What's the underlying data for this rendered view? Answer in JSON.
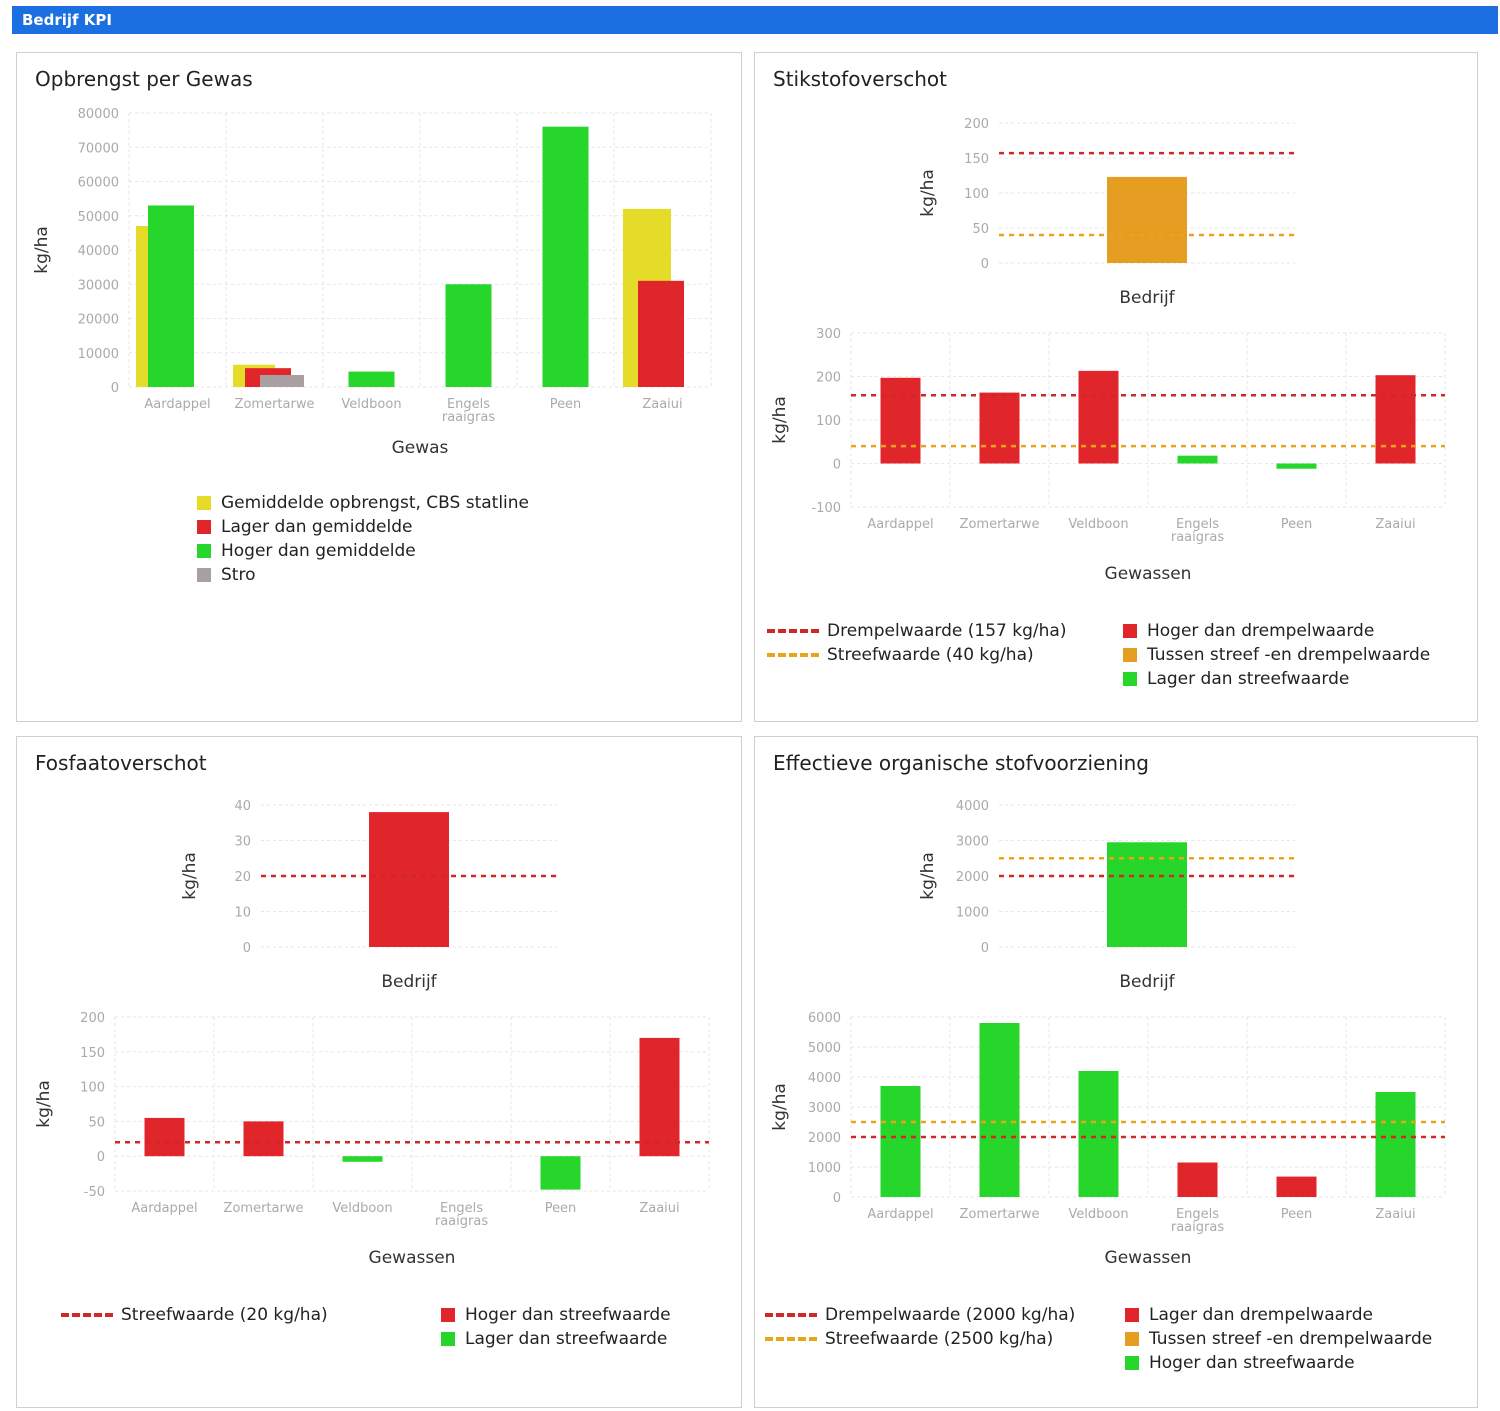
{
  "header": {
    "title": "Bedrijf KPI"
  },
  "colors": {
    "red": "#e0262a",
    "green": "#27d62a",
    "yellow": "#e5dc2a",
    "orange": "#e69e22",
    "gray": "#a9a0a3",
    "threshold": "#d0282a",
    "target": "#e8a51c"
  },
  "panels": {
    "p1": {
      "title": "Opbrengst per Gewas"
    },
    "p2": {
      "title": "Stikstofoverschot"
    },
    "p3": {
      "title": "Fosfaatoverschot"
    },
    "p4": {
      "title": "Effectieve organische stofvoorziening"
    }
  },
  "chart_data": [
    {
      "id": "opbrengst",
      "type": "bar",
      "xlabel": "Gewas",
      "ylabel": "kg/ha",
      "ylim": [
        0,
        80000
      ],
      "yticks": [
        "0",
        "10000",
        "20000",
        "30000",
        "40000",
        "50000",
        "60000",
        "70000",
        "80000"
      ],
      "categories": [
        [
          "Aardappel"
        ],
        [
          "Zomertarwe"
        ],
        [
          "Veldboon"
        ],
        [
          "Engels",
          "raaigras"
        ],
        [
          "Peen"
        ],
        [
          "Zaaiui"
        ]
      ],
      "series": [
        {
          "name": "Gemiddelde opbrengst, CBS statline",
          "color": "yellow",
          "values": [
            47000,
            6500,
            null,
            null,
            null,
            52000
          ]
        },
        {
          "name": "Lager dan gemiddelde",
          "color": "red",
          "values": [
            null,
            5500,
            null,
            null,
            null,
            31000
          ]
        },
        {
          "name": "Hoger dan gemiddelde",
          "color": "green",
          "values": [
            53000,
            null,
            4500,
            30000,
            76000,
            null
          ]
        },
        {
          "name": "Stro",
          "color": "gray",
          "values": [
            null,
            3500,
            null,
            null,
            null,
            null
          ]
        }
      ],
      "grid": true
    },
    {
      "id": "stikstof_bedrijf",
      "type": "bar",
      "xlabel": "Bedrijf",
      "ylabel": "kg/ha",
      "ylim": [
        0,
        200
      ],
      "yticks": [
        "0",
        "50",
        "100",
        "150",
        "200"
      ],
      "values": [
        {
          "value": 123,
          "color": "orange"
        }
      ],
      "thresholds": [
        {
          "value": 157,
          "color": "threshold"
        },
        {
          "value": 40,
          "color": "target"
        }
      ]
    },
    {
      "id": "stikstof_gewassen",
      "type": "bar",
      "xlabel": "Gewassen",
      "ylabel": "kg/ha",
      "ylim": [
        -100,
        300
      ],
      "yticks": [
        "-100",
        "0",
        "100",
        "200",
        "300"
      ],
      "categories": [
        [
          "Aardappel"
        ],
        [
          "Zomertarwe"
        ],
        [
          "Veldboon"
        ],
        [
          "Engels",
          "raaigras"
        ],
        [
          "Peen"
        ],
        [
          "Zaaiui"
        ]
      ],
      "values": [
        {
          "value": 197,
          "color": "red"
        },
        {
          "value": 163,
          "color": "red"
        },
        {
          "value": 213,
          "color": "red"
        },
        {
          "value": 18,
          "color": "green"
        },
        {
          "value": -12,
          "color": "green"
        },
        {
          "value": 203,
          "color": "red"
        }
      ],
      "thresholds": [
        {
          "value": 157,
          "color": "threshold"
        },
        {
          "value": 40,
          "color": "target"
        }
      ],
      "legend": {
        "lines": [
          {
            "label": "Drempelwaarde (157 kg/ha)",
            "color": "threshold"
          },
          {
            "label": "Streefwaarde (40 kg/ha)",
            "color": "target"
          }
        ],
        "boxes": [
          {
            "label": "Hoger dan drempelwaarde",
            "color": "red"
          },
          {
            "label": "Tussen streef -en drempelwaarde",
            "color": "orange"
          },
          {
            "label": "Lager dan streefwaarde",
            "color": "green"
          }
        ]
      }
    },
    {
      "id": "fosfaat_bedrijf",
      "type": "bar",
      "xlabel": "Bedrijf",
      "ylabel": "kg/ha",
      "ylim": [
        0,
        40
      ],
      "yticks": [
        "0",
        "10",
        "20",
        "30",
        "40"
      ],
      "values": [
        {
          "value": 38,
          "color": "red"
        }
      ],
      "thresholds": [
        {
          "value": 20,
          "color": "threshold"
        }
      ]
    },
    {
      "id": "fosfaat_gewassen",
      "type": "bar",
      "xlabel": "Gewassen",
      "ylabel": "kg/ha",
      "ylim": [
        -50,
        200
      ],
      "yticks": [
        "-50",
        "0",
        "50",
        "100",
        "150",
        "200"
      ],
      "categories": [
        [
          "Aardappel"
        ],
        [
          "Zomertarwe"
        ],
        [
          "Veldboon"
        ],
        [
          "Engels",
          "raaigras"
        ],
        [
          "Peen"
        ],
        [
          "Zaaiui"
        ]
      ],
      "values": [
        {
          "value": 55,
          "color": "red"
        },
        {
          "value": 50,
          "color": "red"
        },
        {
          "value": -8,
          "color": "green"
        },
        {
          "value": null,
          "color": "green"
        },
        {
          "value": -48,
          "color": "green"
        },
        {
          "value": 170,
          "color": "red"
        }
      ],
      "thresholds": [
        {
          "value": 20,
          "color": "threshold"
        }
      ],
      "legend": {
        "lines": [
          {
            "label": "Streefwaarde (20 kg/ha)",
            "color": "threshold"
          }
        ],
        "boxes": [
          {
            "label": "Hoger dan streefwaarde",
            "color": "red"
          },
          {
            "label": "Lager dan streefwaarde",
            "color": "green"
          }
        ]
      }
    },
    {
      "id": "eos_bedrijf",
      "type": "bar",
      "xlabel": "Bedrijf",
      "ylabel": "kg/ha",
      "ylim": [
        0,
        4000
      ],
      "yticks": [
        "0",
        "1000",
        "2000",
        "3000",
        "4000"
      ],
      "values": [
        {
          "value": 2950,
          "color": "green"
        }
      ],
      "thresholds": [
        {
          "value": 2000,
          "color": "threshold"
        },
        {
          "value": 2500,
          "color": "target"
        }
      ]
    },
    {
      "id": "eos_gewassen",
      "type": "bar",
      "xlabel": "Gewassen",
      "ylabel": "kg/ha",
      "ylim": [
        0,
        6000
      ],
      "yticks": [
        "0",
        "1000",
        "2000",
        "3000",
        "4000",
        "5000",
        "6000"
      ],
      "categories": [
        [
          "Aardappel"
        ],
        [
          "Zomertarwe"
        ],
        [
          "Veldboon"
        ],
        [
          "Engels",
          "raaigras"
        ],
        [
          "Peen"
        ],
        [
          "Zaaiui"
        ]
      ],
      "values": [
        {
          "value": 3700,
          "color": "green"
        },
        {
          "value": 5800,
          "color": "green"
        },
        {
          "value": 4200,
          "color": "green"
        },
        {
          "value": 1150,
          "color": "red"
        },
        {
          "value": 680,
          "color": "red"
        },
        {
          "value": 3500,
          "color": "green"
        }
      ],
      "thresholds": [
        {
          "value": 2000,
          "color": "threshold"
        },
        {
          "value": 2500,
          "color": "target"
        }
      ],
      "legend": {
        "lines": [
          {
            "label": "Drempelwaarde (2000 kg/ha)",
            "color": "threshold"
          },
          {
            "label": "Streefwaarde (2500 kg/ha)",
            "color": "target"
          }
        ],
        "boxes": [
          {
            "label": "Lager dan drempelwaarde",
            "color": "red"
          },
          {
            "label": "Tussen streef -en drempelwaarde",
            "color": "orange"
          },
          {
            "label": "Hoger dan streefwaarde",
            "color": "green"
          }
        ]
      }
    }
  ]
}
